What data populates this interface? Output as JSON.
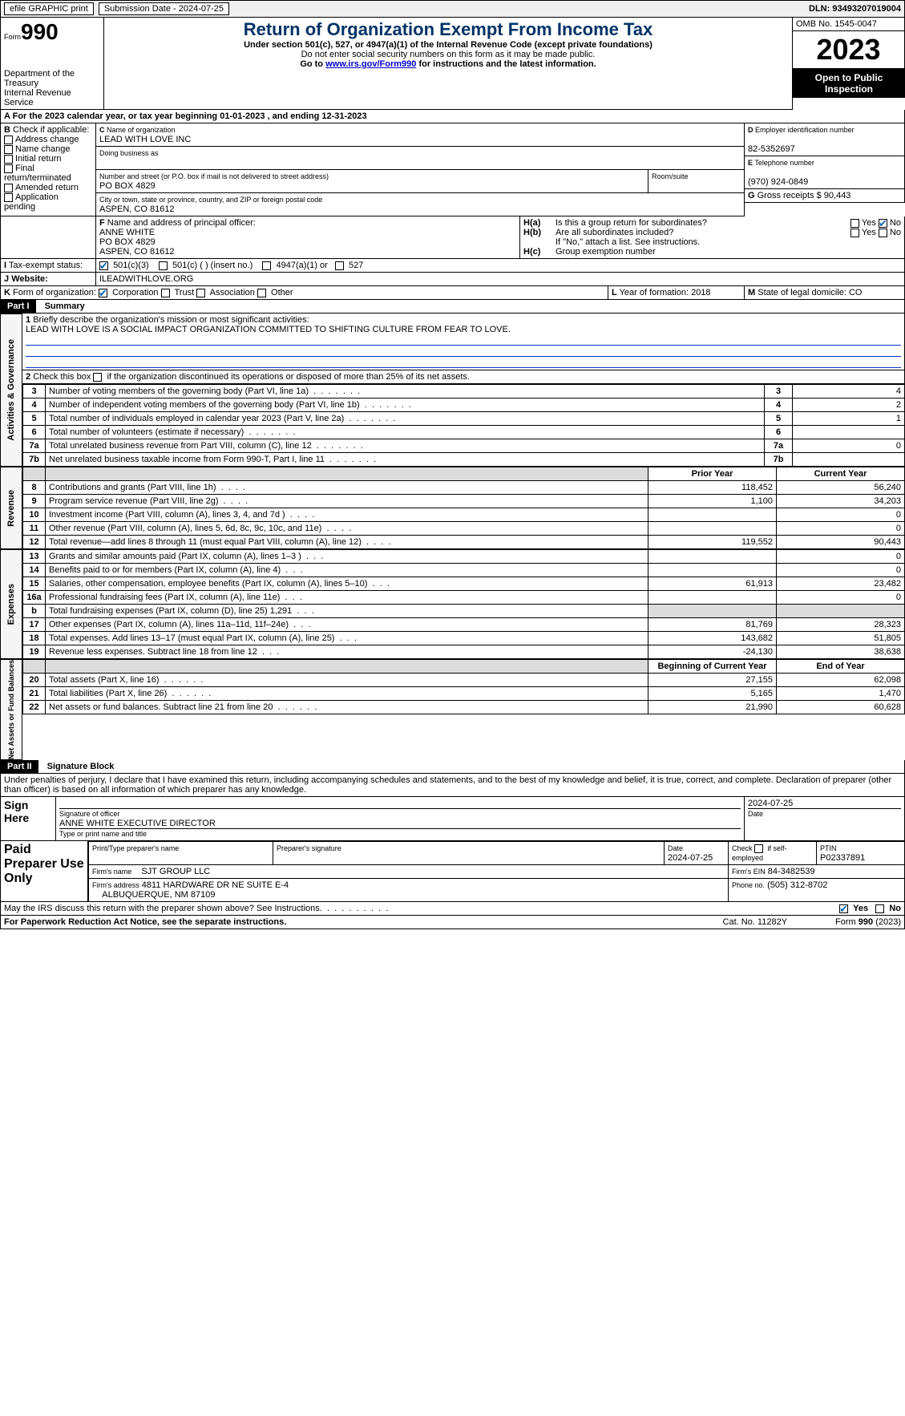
{
  "header": {
    "efile": "efile GRAPHIC print",
    "submission": "Submission Date - 2024-07-25",
    "dln": "DLN: 93493207019004"
  },
  "form": {
    "form_label": "Form",
    "form_num": "990",
    "title": "Return of Organization Exempt From Income Tax",
    "under": "Under section 501(c), 527, or 4947(a)(1) of the Internal Revenue Code (except private foundations)",
    "ssn_note": "Do not enter social security numbers on this form as it may be made public.",
    "goto": "Go to ",
    "url": "www.irs.gov/Form990",
    "goto2": " for instructions and the latest information.",
    "dept": "Department of the Treasury",
    "irs": "Internal Revenue Service",
    "omb": "OMB No. 1545-0047",
    "year": "2023",
    "open": "Open to Public Inspection"
  },
  "A": {
    "text": "For the 2023 calendar year, or tax year beginning 01-01-2023   , and ending 12-31-2023"
  },
  "B": {
    "label": "Check if applicable:",
    "items": [
      "Address change",
      "Name change",
      "Initial return",
      "Final return/terminated",
      "Amended return",
      "Application pending"
    ]
  },
  "C": {
    "label": "Name of organization",
    "name": "LEAD WITH LOVE INC",
    "dba_label": "Doing business as",
    "street_label": "Number and street (or P.O. box if mail is not delivered to street address)",
    "room_label": "Room/suite",
    "street": "PO BOX 4829",
    "city_label": "City or town, state or province, country, and ZIP or foreign postal code",
    "city": "ASPEN, CO  81612"
  },
  "D": {
    "label": "Employer identification number",
    "val": "82-5352697"
  },
  "E": {
    "label": "Telephone number",
    "val": "(970) 924-0849"
  },
  "G": {
    "label": "Gross receipts $",
    "val": "90,443"
  },
  "F": {
    "label": "Name and address of principal officer:",
    "name": "ANNE WHITE",
    "addr1": "PO BOX 4829",
    "addr2": "ASPEN, CO  81612"
  },
  "H": {
    "a": "Is this a group return for subordinates?",
    "b": "Are all subordinates included?",
    "b_note": "If \"No,\" attach a list. See instructions.",
    "c": "Group exemption number",
    "yes": "Yes",
    "no": "No"
  },
  "I": {
    "label": "Tax-exempt status:",
    "o501c3": "501(c)(3)",
    "o501c": "501(c) (  ) (insert no.)",
    "o4947": "4947(a)(1) or",
    "o527": "527"
  },
  "J": {
    "label": "Website:",
    "val": "ILEADWITHLOVE.ORG"
  },
  "K": {
    "label": "Form of organization:",
    "corp": "Corporation",
    "trust": "Trust",
    "assoc": "Association",
    "other": "Other"
  },
  "L": {
    "label": "Year of formation:",
    "val": "2018"
  },
  "M": {
    "label": "State of legal domicile:",
    "val": "CO"
  },
  "part1": {
    "label": "Part I",
    "title": "Summary"
  },
  "side": {
    "ag": "Activities & Governance",
    "rev": "Revenue",
    "exp": "Expenses",
    "na": "Net Assets or Fund Balances"
  },
  "line1": {
    "label": "Briefly describe the organization's mission or most significant activities:",
    "val": "LEAD WITH LOVE IS A SOCIAL IMPACT ORGANIZATION COMMITTED TO SHIFTING CULTURE FROM FEAR TO LOVE."
  },
  "line2": "Check this box       if the organization discontinued its operations or disposed of more than 25% of its net assets.",
  "lines_gov": [
    {
      "n": "3",
      "t": "Number of voting members of the governing body (Part VI, line 1a)",
      "v": "4"
    },
    {
      "n": "4",
      "t": "Number of independent voting members of the governing body (Part VI, line 1b)",
      "v": "2"
    },
    {
      "n": "5",
      "t": "Total number of individuals employed in calendar year 2023 (Part V, line 2a)",
      "v": "1"
    },
    {
      "n": "6",
      "t": "Total number of volunteers (estimate if necessary)",
      "v": ""
    },
    {
      "n": "7a",
      "t": "Total unrelated business revenue from Part VIII, column (C), line 12",
      "v": "0"
    },
    {
      "n": "7b",
      "t": "Net unrelated business taxable income from Form 990-T, Part I, line 11",
      "v": ""
    }
  ],
  "col_headers": {
    "prior": "Prior Year",
    "curr": "Current Year",
    "begin": "Beginning of Current Year",
    "end": "End of Year"
  },
  "lines_rev": [
    {
      "n": "8",
      "t": "Contributions and grants (Part VIII, line 1h)",
      "p": "118,452",
      "c": "56,240"
    },
    {
      "n": "9",
      "t": "Program service revenue (Part VIII, line 2g)",
      "p": "1,100",
      "c": "34,203"
    },
    {
      "n": "10",
      "t": "Investment income (Part VIII, column (A), lines 3, 4, and 7d )",
      "p": "",
      "c": "0"
    },
    {
      "n": "11",
      "t": "Other revenue (Part VIII, column (A), lines 5, 6d, 8c, 9c, 10c, and 11e)",
      "p": "",
      "c": "0"
    },
    {
      "n": "12",
      "t": "Total revenue—add lines 8 through 11 (must equal Part VIII, column (A), line 12)",
      "p": "119,552",
      "c": "90,443"
    }
  ],
  "lines_exp": [
    {
      "n": "13",
      "t": "Grants and similar amounts paid (Part IX, column (A), lines 1–3 )",
      "p": "",
      "c": "0"
    },
    {
      "n": "14",
      "t": "Benefits paid to or for members (Part IX, column (A), line 4)",
      "p": "",
      "c": "0"
    },
    {
      "n": "15",
      "t": "Salaries, other compensation, employee benefits (Part IX, column (A), lines 5–10)",
      "p": "61,913",
      "c": "23,482"
    },
    {
      "n": "16a",
      "t": "Professional fundraising fees (Part IX, column (A), line 11e)",
      "p": "",
      "c": "0"
    },
    {
      "n": "b",
      "t": "Total fundraising expenses (Part IX, column (D), line 25) 1,291",
      "p": "GRAY",
      "c": "GRAY"
    },
    {
      "n": "17",
      "t": "Other expenses (Part IX, column (A), lines 11a–11d, 11f–24e)",
      "p": "81,769",
      "c": "28,323"
    },
    {
      "n": "18",
      "t": "Total expenses. Add lines 13–17 (must equal Part IX, column (A), line 25)",
      "p": "143,682",
      "c": "51,805"
    },
    {
      "n": "19",
      "t": "Revenue less expenses. Subtract line 18 from line 12",
      "p": "-24,130",
      "c": "38,638"
    }
  ],
  "lines_na": [
    {
      "n": "20",
      "t": "Total assets (Part X, line 16)",
      "p": "27,155",
      "c": "62,098"
    },
    {
      "n": "21",
      "t": "Total liabilities (Part X, line 26)",
      "p": "5,165",
      "c": "1,470"
    },
    {
      "n": "22",
      "t": "Net assets or fund balances. Subtract line 21 from line 20",
      "p": "21,990",
      "c": "60,628"
    }
  ],
  "part2": {
    "label": "Part II",
    "title": "Signature Block"
  },
  "penalty": "Under penalties of perjury, I declare that I have examined this return, including accompanying schedules and statements, and to the best of my knowledge and belief, it is true, correct, and complete. Declaration of preparer (other than officer) is based on all information of which preparer has any knowledge.",
  "sign": {
    "here": "Sign Here",
    "sig_label": "Signature of officer",
    "officer": "ANNE WHITE  EXECUTIVE DIRECTOR",
    "type_label": "Type or print name and title",
    "date_label": "Date",
    "date": "2024-07-25"
  },
  "paid": {
    "label": "Paid Preparer Use Only",
    "name_label": "Print/Type preparer's name",
    "sig_label": "Preparer's signature",
    "date_label": "Date",
    "date": "2024-07-25",
    "check_label": "Check        if self-employed",
    "ptin_label": "PTIN",
    "ptin": "P02337891",
    "firm_label": "Firm's name",
    "firm": "SJT GROUP LLC",
    "ein_label": "Firm's EIN",
    "ein": "84-3482539",
    "addr_label": "Firm's address",
    "addr": "4811 HARDWARE DR NE SUITE E-4",
    "addr2": "ALBUQUERQUE, NM  87109",
    "phone_label": "Phone no.",
    "phone": "(505) 312-8702"
  },
  "discuss": "May the IRS discuss this return with the preparer shown above? See Instructions.",
  "footer": {
    "pra": "For Paperwork Reduction Act Notice, see the separate instructions.",
    "cat": "Cat. No. 11282Y",
    "form": "Form 990 (2023)"
  }
}
